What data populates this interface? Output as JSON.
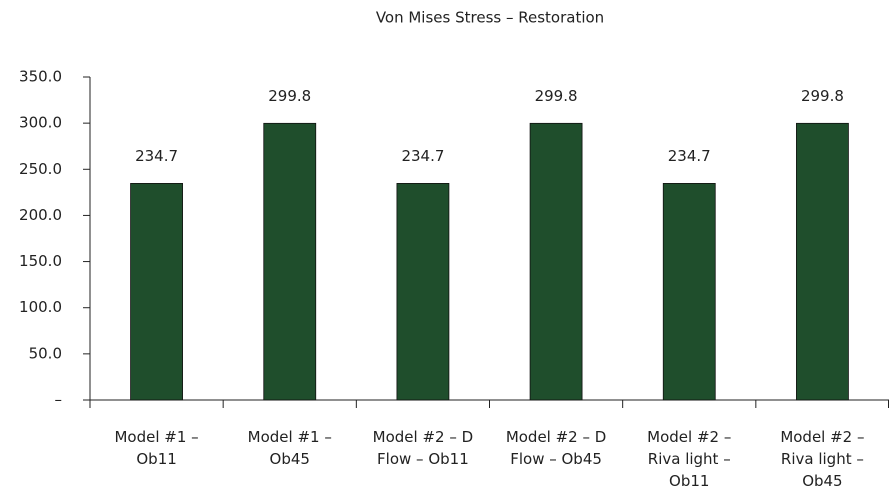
{
  "chart_data": {
    "type": "bar",
    "title": "Von Mises Stress – Restoration",
    "categories": [
      "Model #1 – Ob11",
      "Model #1 – Ob45",
      "Model #2 – D Flow – Ob11",
      "Model #2 – D Flow – Ob45",
      "Model #2 – Riva light – Ob11",
      "Model #2 – Riva light – Ob45"
    ],
    "values": [
      234.7,
      299.8,
      234.7,
      299.8,
      234.7,
      299.8
    ],
    "color": "#1f4e2c",
    "ylim": [
      0,
      350
    ],
    "yticks": [
      {
        "value": 0,
        "label": "–"
      },
      {
        "value": 50,
        "label": "50.0"
      },
      {
        "value": 100,
        "label": "100.0"
      },
      {
        "value": 150,
        "label": "150.0"
      },
      {
        "value": 200,
        "label": "200.0"
      },
      {
        "value": 250,
        "label": "250.0"
      },
      {
        "value": 300,
        "label": "300.0"
      },
      {
        "value": 350,
        "label": "350.0"
      }
    ],
    "grid": false
  }
}
